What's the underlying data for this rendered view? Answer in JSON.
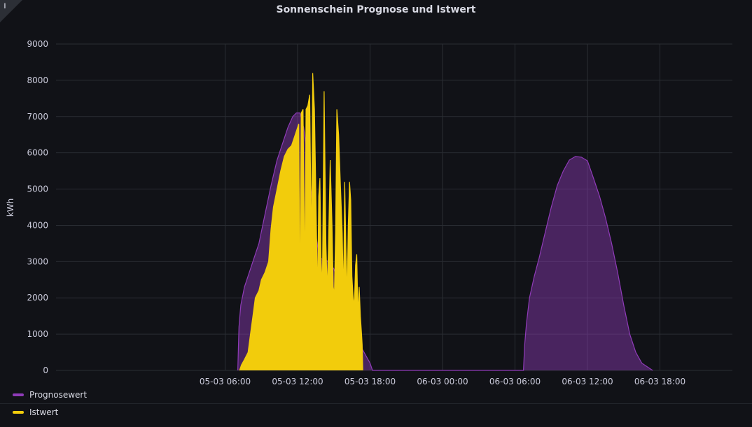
{
  "panel": {
    "info_icon": "info-icon"
  },
  "chart_data": {
    "type": "area",
    "title": "Sonnenschein Prognose und Istwert",
    "ylabel": "kWh",
    "xlabel": "",
    "x_unit": "hours",
    "xlim": [
      -8.0,
      48.0
    ],
    "ylim": [
      0,
      9000
    ],
    "y_ticks": [
      0,
      1000,
      2000,
      3000,
      4000,
      5000,
      6000,
      7000,
      8000,
      9000
    ],
    "x_ticks": [
      {
        "x": 6,
        "label": "05-03 06:00"
      },
      {
        "x": 12,
        "label": "05-03 12:00"
      },
      {
        "x": 18,
        "label": "05-03 18:00"
      },
      {
        "x": 24,
        "label": "06-03 00:00"
      },
      {
        "x": 30,
        "label": "06-03 06:00"
      },
      {
        "x": 36,
        "label": "06-03 12:00"
      },
      {
        "x": 42,
        "label": "06-03 18:00"
      }
    ],
    "grid": true,
    "legend_position": "bottom",
    "series": [
      {
        "name": "Prognosewert",
        "color": "#8f3bb8",
        "fill": "rgba(143,59,184,0.45)",
        "points": [
          [
            7.05,
            0
          ],
          [
            7.15,
            1200
          ],
          [
            7.3,
            1800
          ],
          [
            7.6,
            2300
          ],
          [
            8.0,
            2700
          ],
          [
            8.4,
            3100
          ],
          [
            8.8,
            3500
          ],
          [
            9.3,
            4300
          ],
          [
            9.8,
            5100
          ],
          [
            10.3,
            5800
          ],
          [
            10.8,
            6300
          ],
          [
            11.2,
            6700
          ],
          [
            11.6,
            7000
          ],
          [
            11.9,
            7100
          ],
          [
            12.2,
            7100
          ],
          [
            12.5,
            6700
          ],
          [
            12.8,
            6000
          ],
          [
            13.1,
            5000
          ],
          [
            13.4,
            4000
          ],
          [
            13.8,
            3100
          ],
          [
            14.2,
            3050
          ],
          [
            14.6,
            3000
          ],
          [
            15.0,
            2800
          ],
          [
            15.4,
            2400
          ],
          [
            15.8,
            1800
          ],
          [
            16.2,
            1300
          ],
          [
            16.6,
            1000
          ],
          [
            17.0,
            800
          ],
          [
            17.5,
            500
          ],
          [
            18.0,
            200
          ],
          [
            18.2,
            0
          ],
          [
            30.7,
            0
          ],
          [
            30.8,
            700
          ],
          [
            30.95,
            1300
          ],
          [
            31.2,
            2000
          ],
          [
            31.6,
            2600
          ],
          [
            32.0,
            3100
          ],
          [
            32.5,
            3800
          ],
          [
            33.0,
            4500
          ],
          [
            33.5,
            5100
          ],
          [
            34.0,
            5500
          ],
          [
            34.5,
            5800
          ],
          [
            35.0,
            5900
          ],
          [
            35.5,
            5880
          ],
          [
            36.0,
            5780
          ],
          [
            36.5,
            5300
          ],
          [
            37.0,
            4800
          ],
          [
            37.5,
            4200
          ],
          [
            38.0,
            3500
          ],
          [
            38.5,
            2700
          ],
          [
            39.0,
            1800
          ],
          [
            39.5,
            1000
          ],
          [
            40.0,
            500
          ],
          [
            40.5,
            200
          ],
          [
            41.4,
            0
          ]
        ]
      },
      {
        "name": "Istwert",
        "color": "#f2cc0c",
        "fill": "#f2cc0c",
        "points": [
          [
            7.2,
            0
          ],
          [
            7.35,
            150
          ],
          [
            7.6,
            300
          ],
          [
            7.9,
            500
          ],
          [
            8.1,
            1000
          ],
          [
            8.3,
            1500
          ],
          [
            8.5,
            2000
          ],
          [
            8.8,
            2200
          ],
          [
            9.0,
            2500
          ],
          [
            9.3,
            2700
          ],
          [
            9.6,
            3000
          ],
          [
            9.8,
            3900
          ],
          [
            10.0,
            4500
          ],
          [
            10.3,
            5000
          ],
          [
            10.6,
            5500
          ],
          [
            10.9,
            5900
          ],
          [
            11.2,
            6100
          ],
          [
            11.5,
            6200
          ],
          [
            11.8,
            6500
          ],
          [
            12.1,
            6800
          ],
          [
            12.2,
            1700
          ],
          [
            12.3,
            7100
          ],
          [
            12.45,
            7200
          ],
          [
            12.6,
            2500
          ],
          [
            12.7,
            7200
          ],
          [
            12.85,
            7300
          ],
          [
            13.0,
            7600
          ],
          [
            13.15,
            3200
          ],
          [
            13.25,
            8200
          ],
          [
            13.4,
            7200
          ],
          [
            13.55,
            4200
          ],
          [
            13.65,
            2000
          ],
          [
            13.75,
            4800
          ],
          [
            13.85,
            5300
          ],
          [
            13.95,
            3000
          ],
          [
            14.05,
            2300
          ],
          [
            14.2,
            7700
          ],
          [
            14.35,
            3500
          ],
          [
            14.45,
            2200
          ],
          [
            14.55,
            3300
          ],
          [
            14.7,
            5800
          ],
          [
            14.85,
            4000
          ],
          [
            14.95,
            2300
          ],
          [
            15.05,
            2100
          ],
          [
            15.15,
            3800
          ],
          [
            15.25,
            7200
          ],
          [
            15.4,
            6500
          ],
          [
            15.55,
            5100
          ],
          [
            15.7,
            3800
          ],
          [
            15.8,
            2000
          ],
          [
            15.9,
            5200
          ],
          [
            16.0,
            3400
          ],
          [
            16.1,
            2000
          ],
          [
            16.2,
            4000
          ],
          [
            16.3,
            5200
          ],
          [
            16.4,
            4700
          ],
          [
            16.5,
            2600
          ],
          [
            16.6,
            2000
          ],
          [
            16.7,
            1800
          ],
          [
            16.8,
            2900
          ],
          [
            16.9,
            3200
          ],
          [
            17.0,
            1500
          ],
          [
            17.1,
            2300
          ],
          [
            17.2,
            1500
          ],
          [
            17.3,
            1000
          ],
          [
            17.35,
            700
          ],
          [
            17.4,
            0
          ]
        ]
      }
    ]
  }
}
